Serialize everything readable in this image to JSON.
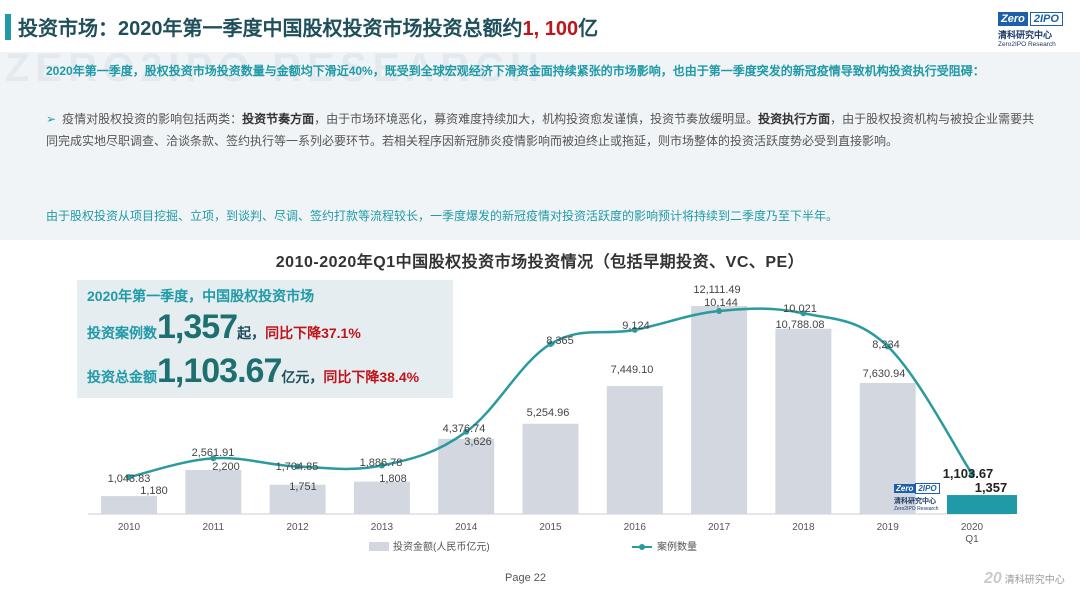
{
  "header": {
    "title_prefix": "投资市场：2020年第一季度中国股权投资市场投资总额约",
    "title_amount": "1, 100",
    "title_suffix": "亿",
    "logo_zero": "Zero",
    "logo_2": "2",
    "logo_ipo": "IPO",
    "logo_cn": "清科研究中心",
    "logo_en": "Zero2IPO Research"
  },
  "watermark": "ZERO2IPO RESEARCH",
  "text": {
    "p1": "2020年第一季度，股权投资市场投资数量与金额均下滑近40%，既受到全球宏观经济下滑资金面持续紧张的市场影响，也由于第一季度突发的新冠疫情导致机构投资执行受阻碍：",
    "p2_arrow": "➢",
    "p2_a": "疫情对股权投资的影响包括两类：",
    "p2_b": "投资节奏方面",
    "p2_c": "，由于市场环境恶化，募资难度持续加大，机构投资愈发谨慎，投资节奏放缓明显。",
    "p2_d": "投资执行方面",
    "p2_e": "，由于股权投资机构与被投企业需要共同完成实地尽职调查、洽谈条款、签约执行等一系列必要环节。若相关程序因新冠肺炎疫情影响而被迫终止或拖延，则市场整体的投资活跃度势必受到直接影响。",
    "p3": "由于股权投资从项目挖掘、立项，到谈判、尽调、签约打款等流程较长，一季度爆发的新冠疫情对投资活跃度的影响预计将持续到二季度乃至下半年。"
  },
  "infobox": {
    "head": "2020年第一季度，中国股权投资市场",
    "row1_label": "投资案例数",
    "row1_value": "1,357",
    "row1_unit": "起，",
    "row1_change": "同比下降37.1%",
    "row2_label": "投资总金额",
    "row2_value": "1,103.67",
    "row2_unit": "亿元，",
    "row2_change": "同比下降38.4%"
  },
  "chart_data": {
    "type": "bar",
    "title": "2010-2020年Q1中国股权投资市场投资情况（包括早期投资、VC、PE）",
    "categories": [
      "2010",
      "2011",
      "2012",
      "2013",
      "2014",
      "2015",
      "2016",
      "2017",
      "2018",
      "2019",
      "2020\nQ1"
    ],
    "series": [
      {
        "name": "投资金额(人民币亿元)",
        "type": "bar",
        "values": [
          1043.83,
          2561.91,
          1704.85,
          1886.78,
          4376.74,
          5254.96,
          7449.1,
          12111.49,
          10788.08,
          7630.94,
          1103.67
        ],
        "labels": [
          "1,043.83",
          "2,561.91",
          "1,704.85",
          "1,886.78",
          "4,376.74",
          "5,254.96",
          "7,449.10",
          "12,111.49",
          "10,788.08",
          "7,630.94",
          "1,103.67"
        ]
      },
      {
        "name": "案例数量",
        "type": "line",
        "values": [
          1180,
          2200,
          1751,
          1808,
          3626,
          8365,
          9124,
          10144,
          10021,
          8234,
          1357
        ],
        "labels": [
          "1,180",
          "2,200",
          "1,751",
          "1,808",
          "3,626",
          "8,365",
          "9,124",
          "10,144",
          "10,021",
          "8,234",
          "1,357"
        ]
      }
    ],
    "colors": {
      "bar": "#d3d7e0",
      "bar_highlight": "#1f9aa6",
      "line": "#2a9a9e"
    },
    "legend_position": "bottom"
  },
  "footer": {
    "page": "Page  22",
    "logo_num": "20",
    "logo_text": "清科研究中心"
  }
}
